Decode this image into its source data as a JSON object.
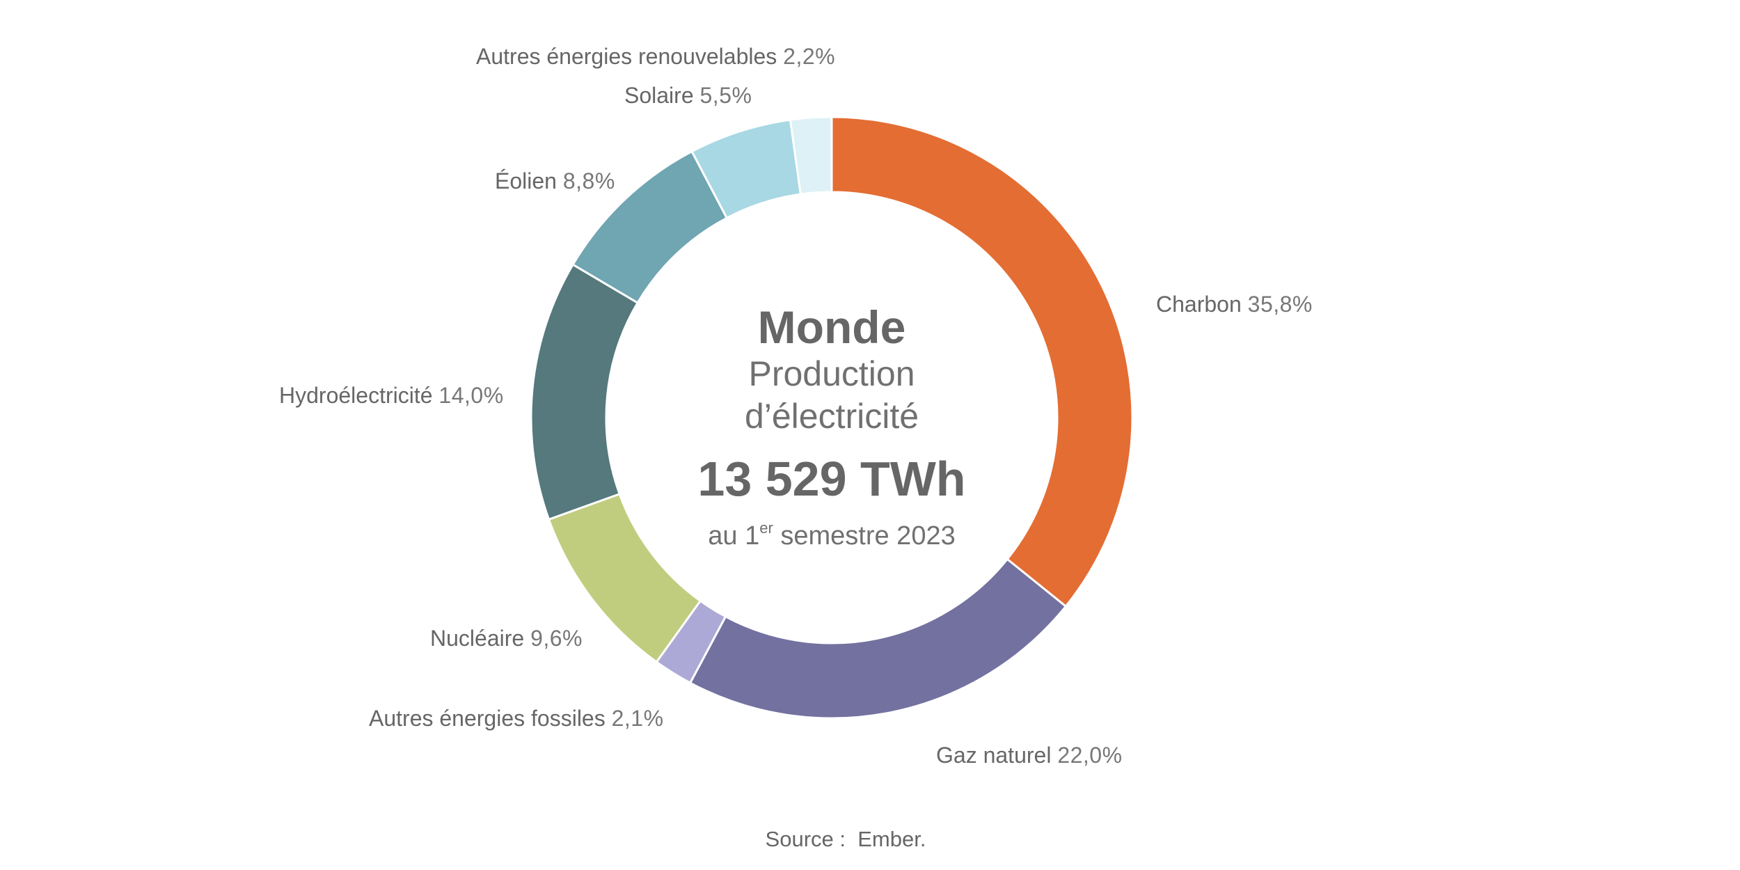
{
  "center": {
    "title": "Monde",
    "subtitle_line1": "Production",
    "subtitle_line2": "d’électricité",
    "total": "13 529 TWh",
    "period_prefix": "au 1",
    "period_sup": "er",
    "period_suffix": " semestre 2023"
  },
  "source": "Source :  Ember.",
  "chart_data": {
    "type": "pie",
    "subtype": "donut",
    "title": "Monde — Production d’électricité",
    "total_label": "13 529 TWh",
    "period": "au 1er semestre 2023",
    "unit": "%",
    "start_angle_deg": 0,
    "direction": "clockwise",
    "categories": [
      "Charbon",
      "Gaz naturel",
      "Autres énergies fossiles",
      "Nucléaire",
      "Hydroélectricité",
      "Éolien",
      "Solaire",
      "Autres énergies renouvelables"
    ],
    "values": [
      35.8,
      22.0,
      2.1,
      9.6,
      14.0,
      8.8,
      5.5,
      2.2
    ],
    "value_labels": [
      "35,8%",
      "22,0%",
      "2,1%",
      "9,6%",
      "14,0%",
      "8,8%",
      "5,5%",
      "2,2%"
    ],
    "colors": [
      "#E46D33",
      "#7371A0",
      "#ADA9D6",
      "#C1CD7E",
      "#55797D",
      "#70A5B2",
      "#A7D8E3",
      "#DDF1F6"
    ],
    "legend": "none (direct labels)",
    "source": "Ember"
  },
  "labels": [
    {
      "name": "Charbon",
      "pct": "35,8%"
    },
    {
      "name": "Gaz naturel",
      "pct": "22,0%"
    },
    {
      "name": "Autres énergies fossiles",
      "pct": "2,1%"
    },
    {
      "name": "Nucléaire",
      "pct": "9,6%"
    },
    {
      "name": "Hydroélectricité",
      "pct": "14,0%"
    },
    {
      "name": "Éolien",
      "pct": "8,8%"
    },
    {
      "name": "Solaire",
      "pct": "5,5%"
    },
    {
      "name": "Autres énergies renouvelables",
      "pct": "2,2%"
    }
  ]
}
